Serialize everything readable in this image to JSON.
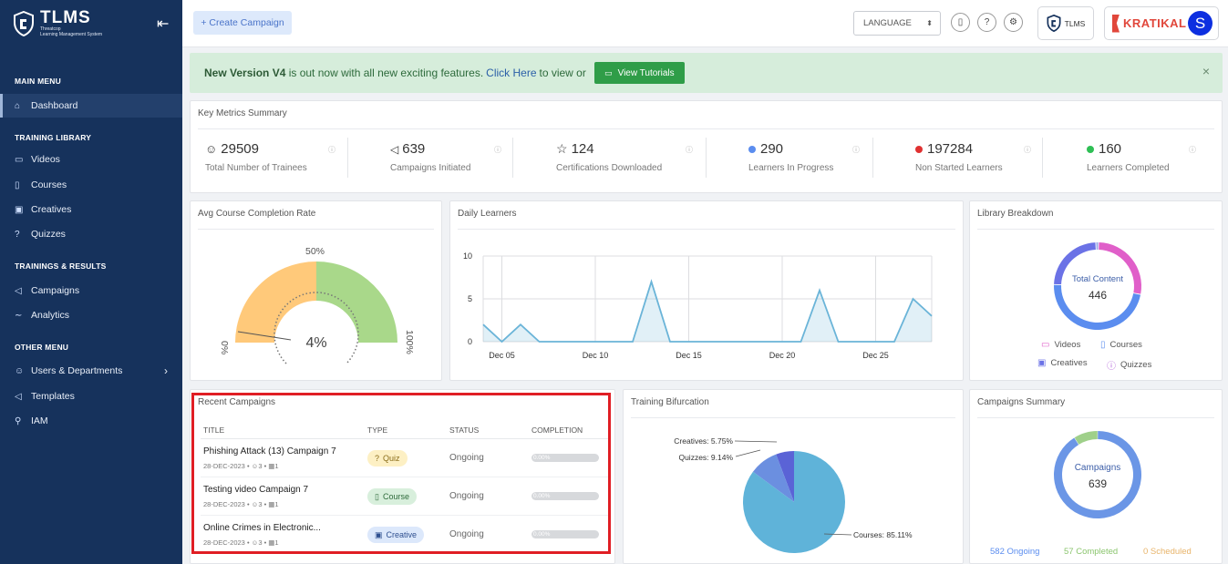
{
  "sidebar": {
    "logo_title": "TLMS",
    "logo_sub_1": "Threatcop",
    "logo_sub_2": "Learning Management System",
    "collapse_icon": "collapse-icon",
    "sections": {
      "main": "MAIN MENU",
      "training_library": "TRAINING LIBRARY",
      "trainings_results": "TRAININGS & RESULTS",
      "other": "OTHER MENU"
    },
    "items": {
      "dashboard": "Dashboard",
      "videos": "Videos",
      "courses": "Courses",
      "creatives": "Creatives",
      "quizzes": "Quizzes",
      "campaigns": "Campaigns",
      "analytics": "Analytics",
      "users": "Users & Departments",
      "templates": "Templates",
      "iam": "IAM"
    }
  },
  "topbar": {
    "create_campaign": "+ Create Campaign",
    "language": "LANGUAGE",
    "brand_tlms": "TLMS",
    "brand_kratikal": "KRATIKAL",
    "avatar_letter": "S"
  },
  "banner": {
    "bold": "New Version V4",
    "text": " is out now with all new exciting features.",
    "click": "Click Here",
    "tail": "to view or",
    "button": "View Tutorials",
    "close": "×"
  },
  "metrics": {
    "title": "Key Metrics Summary",
    "items": [
      {
        "value": "29509",
        "label": "Total Number of Trainees",
        "icon": "user-icon"
      },
      {
        "value": "639",
        "label": "Campaigns Initiated",
        "icon": "megaphone-icon"
      },
      {
        "value": "124",
        "label": "Certifications Downloaded",
        "icon": "star-icon"
      },
      {
        "value": "290",
        "label": "Learners In Progress",
        "color": "#5b8def"
      },
      {
        "value": "197284",
        "label": "Non Started Learners",
        "color": "#e03131"
      },
      {
        "value": "160",
        "label": "Learners Completed",
        "color": "#2fbf55"
      }
    ]
  },
  "avg_completion": {
    "title": "Avg Course Completion Rate",
    "label_50": "50%",
    "label_0": "0%",
    "label_100": "100%",
    "value": "4%",
    "value_fraction": 0.04
  },
  "daily_learners": {
    "title": "Daily Learners"
  },
  "library": {
    "title": "Library Breakdown",
    "center_label": "Total Content",
    "center_value": "446",
    "legend": [
      "Videos",
      "Courses",
      "Creatives",
      "Quizzes"
    ]
  },
  "recent": {
    "title": "Recent Campaigns",
    "headers": [
      "TITLE",
      "TYPE",
      "STATUS",
      "COMPLETION"
    ],
    "rows": [
      {
        "title": "Phishing Attack (13) Campaign 7",
        "date": "28-DEC-2023",
        "users": "3",
        "items": "1",
        "type": "Quiz",
        "status": "Ongoing",
        "completion": "0.00%",
        "completion_value": 0
      },
      {
        "title": "Testing video Campaign 7",
        "date": "28-DEC-2023",
        "users": "3",
        "items": "1",
        "type": "Course",
        "status": "Ongoing",
        "completion": "0.00%",
        "completion_value": 0
      },
      {
        "title": "Online Crimes in Electronic...",
        "date": "28-DEC-2023",
        "users": "3",
        "items": "1",
        "type": "Creative",
        "status": "Ongoing",
        "completion": "0.00%",
        "completion_value": 0
      }
    ]
  },
  "bifurcation": {
    "title": "Training Bifurcation",
    "labels": [
      "Creatives: 5.75%",
      "Quizzes: 9.14%",
      "Courses: 85.11%"
    ]
  },
  "campaigns_summary": {
    "title": "Campaigns Summary",
    "center_label": "Campaigns",
    "center_value": "639",
    "ongoing": "582 Ongoing",
    "completed": "57 Completed",
    "scheduled": "0 Scheduled"
  },
  "chart_data": [
    {
      "type": "area",
      "title": "Daily Learners",
      "x": [
        "Dec 04",
        "Dec 05",
        "Dec 06",
        "Dec 07",
        "Dec 08",
        "Dec 09",
        "Dec 10",
        "Dec 11",
        "Dec 12",
        "Dec 13",
        "Dec 14",
        "Dec 15",
        "Dec 16",
        "Dec 17",
        "Dec 18",
        "Dec 19",
        "Dec 20",
        "Dec 21",
        "Dec 22",
        "Dec 23",
        "Dec 24",
        "Dec 25",
        "Dec 26",
        "Dec 27",
        "Dec 28"
      ],
      "values": [
        2,
        0,
        2,
        0,
        0,
        0,
        0,
        0,
        0,
        7,
        0,
        0,
        0,
        0,
        0,
        0,
        0,
        0,
        6,
        0,
        0,
        0,
        0,
        5,
        3
      ],
      "x_tick_labels": [
        "Dec 05",
        "Dec 10",
        "Dec 15",
        "Dec 20",
        "Dec 25"
      ],
      "y_ticks": [
        "0",
        "5",
        "10"
      ],
      "ylim": [
        0,
        10
      ],
      "color": "#6ab4d8"
    },
    {
      "type": "pie",
      "title": "Training Bifurcation",
      "categories": [
        "Courses",
        "Quizzes",
        "Creatives"
      ],
      "values": [
        85.11,
        9.14,
        5.75
      ],
      "colors": [
        "#5fb3d9",
        "#6b8fe0",
        "#5a63d6"
      ]
    },
    {
      "type": "pie",
      "title": "Library Breakdown",
      "categories": [
        "Videos",
        "Courses",
        "Creatives",
        "Quizzes"
      ],
      "values": [
        28,
        48,
        24,
        1
      ],
      "colors": [
        "#e05fc9",
        "#5b8def",
        "#6b72e6",
        "#9aa9e8"
      ]
    },
    {
      "type": "pie",
      "title": "Campaigns Summary",
      "categories": [
        "Ongoing",
        "Completed",
        "Scheduled"
      ],
      "values": [
        582,
        57,
        0
      ],
      "colors": [
        "#6b96e6",
        "#9fd08a",
        "#f2c68a"
      ]
    }
  ]
}
